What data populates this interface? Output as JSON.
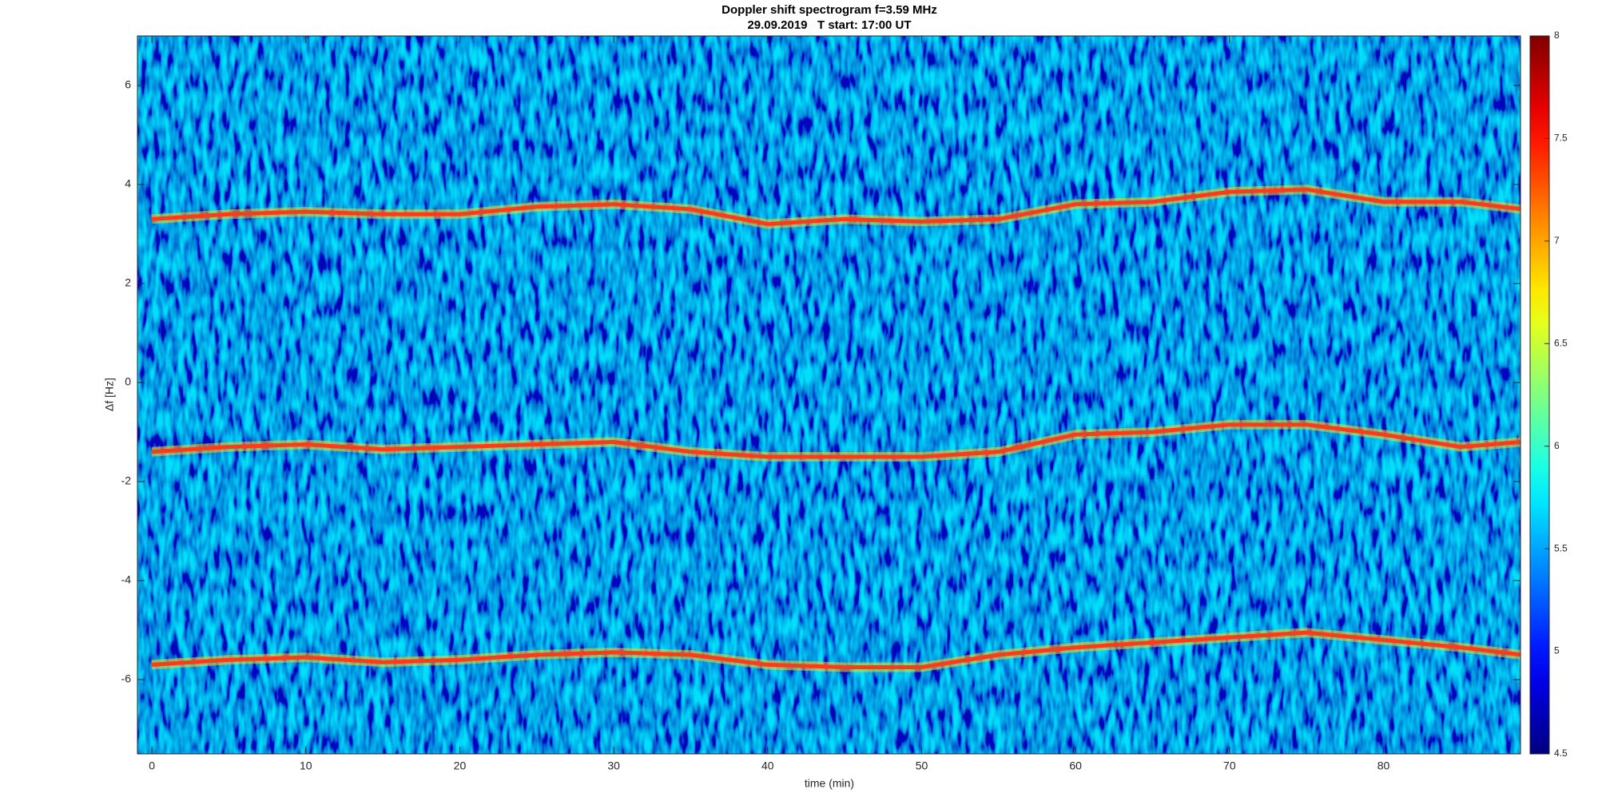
{
  "chart_data": {
    "type": "spectrogram",
    "title": "Doppler shift spectrogram f=3.59 MHz",
    "subtitle": "29.09.2019   T start: 17:00 UT",
    "x_label": "time (min)",
    "y_label": "Δf [Hz]",
    "xlim": [
      -0.94,
      88.9
    ],
    "ylim": [
      -7.5,
      7
    ],
    "xticks": [
      0,
      10,
      20,
      30,
      40,
      50,
      60,
      70,
      80
    ],
    "yticks": [
      -6,
      -4,
      -2,
      0,
      2,
      4,
      6
    ],
    "colormap": "jet",
    "clim": [
      4.5,
      8
    ],
    "cticks": [
      4.5,
      5,
      5.5,
      6,
      6.5,
      7,
      7.5,
      8
    ],
    "x": [
      0,
      5,
      10,
      15,
      20,
      25,
      30,
      35,
      40,
      45,
      50,
      55,
      60,
      65,
      70,
      75,
      80,
      85,
      89
    ],
    "series": [
      {
        "color": "#ff3a1a",
        "values": [
          3.3,
          3.4,
          3.45,
          3.4,
          3.4,
          3.55,
          3.6,
          3.5,
          3.2,
          3.3,
          3.25,
          3.3,
          3.6,
          3.65,
          3.85,
          3.9,
          3.65,
          3.65,
          3.5
        ]
      },
      {
        "color": "#ff3a1a",
        "values": [
          -1.4,
          -1.3,
          -1.25,
          -1.35,
          -1.3,
          -1.25,
          -1.2,
          -1.4,
          -1.5,
          -1.5,
          -1.5,
          -1.4,
          -1.05,
          -1.0,
          -0.85,
          -0.85,
          -1.05,
          -1.3,
          -1.2
        ]
      },
      {
        "color": "#ff3a1a",
        "values": [
          -5.7,
          -5.6,
          -5.55,
          -5.65,
          -5.6,
          -5.5,
          -5.45,
          -5.5,
          -5.7,
          -5.75,
          -5.75,
          -5.5,
          -5.35,
          -5.25,
          -5.15,
          -5.05,
          -5.2,
          -5.35,
          -5.5
        ]
      }
    ]
  }
}
